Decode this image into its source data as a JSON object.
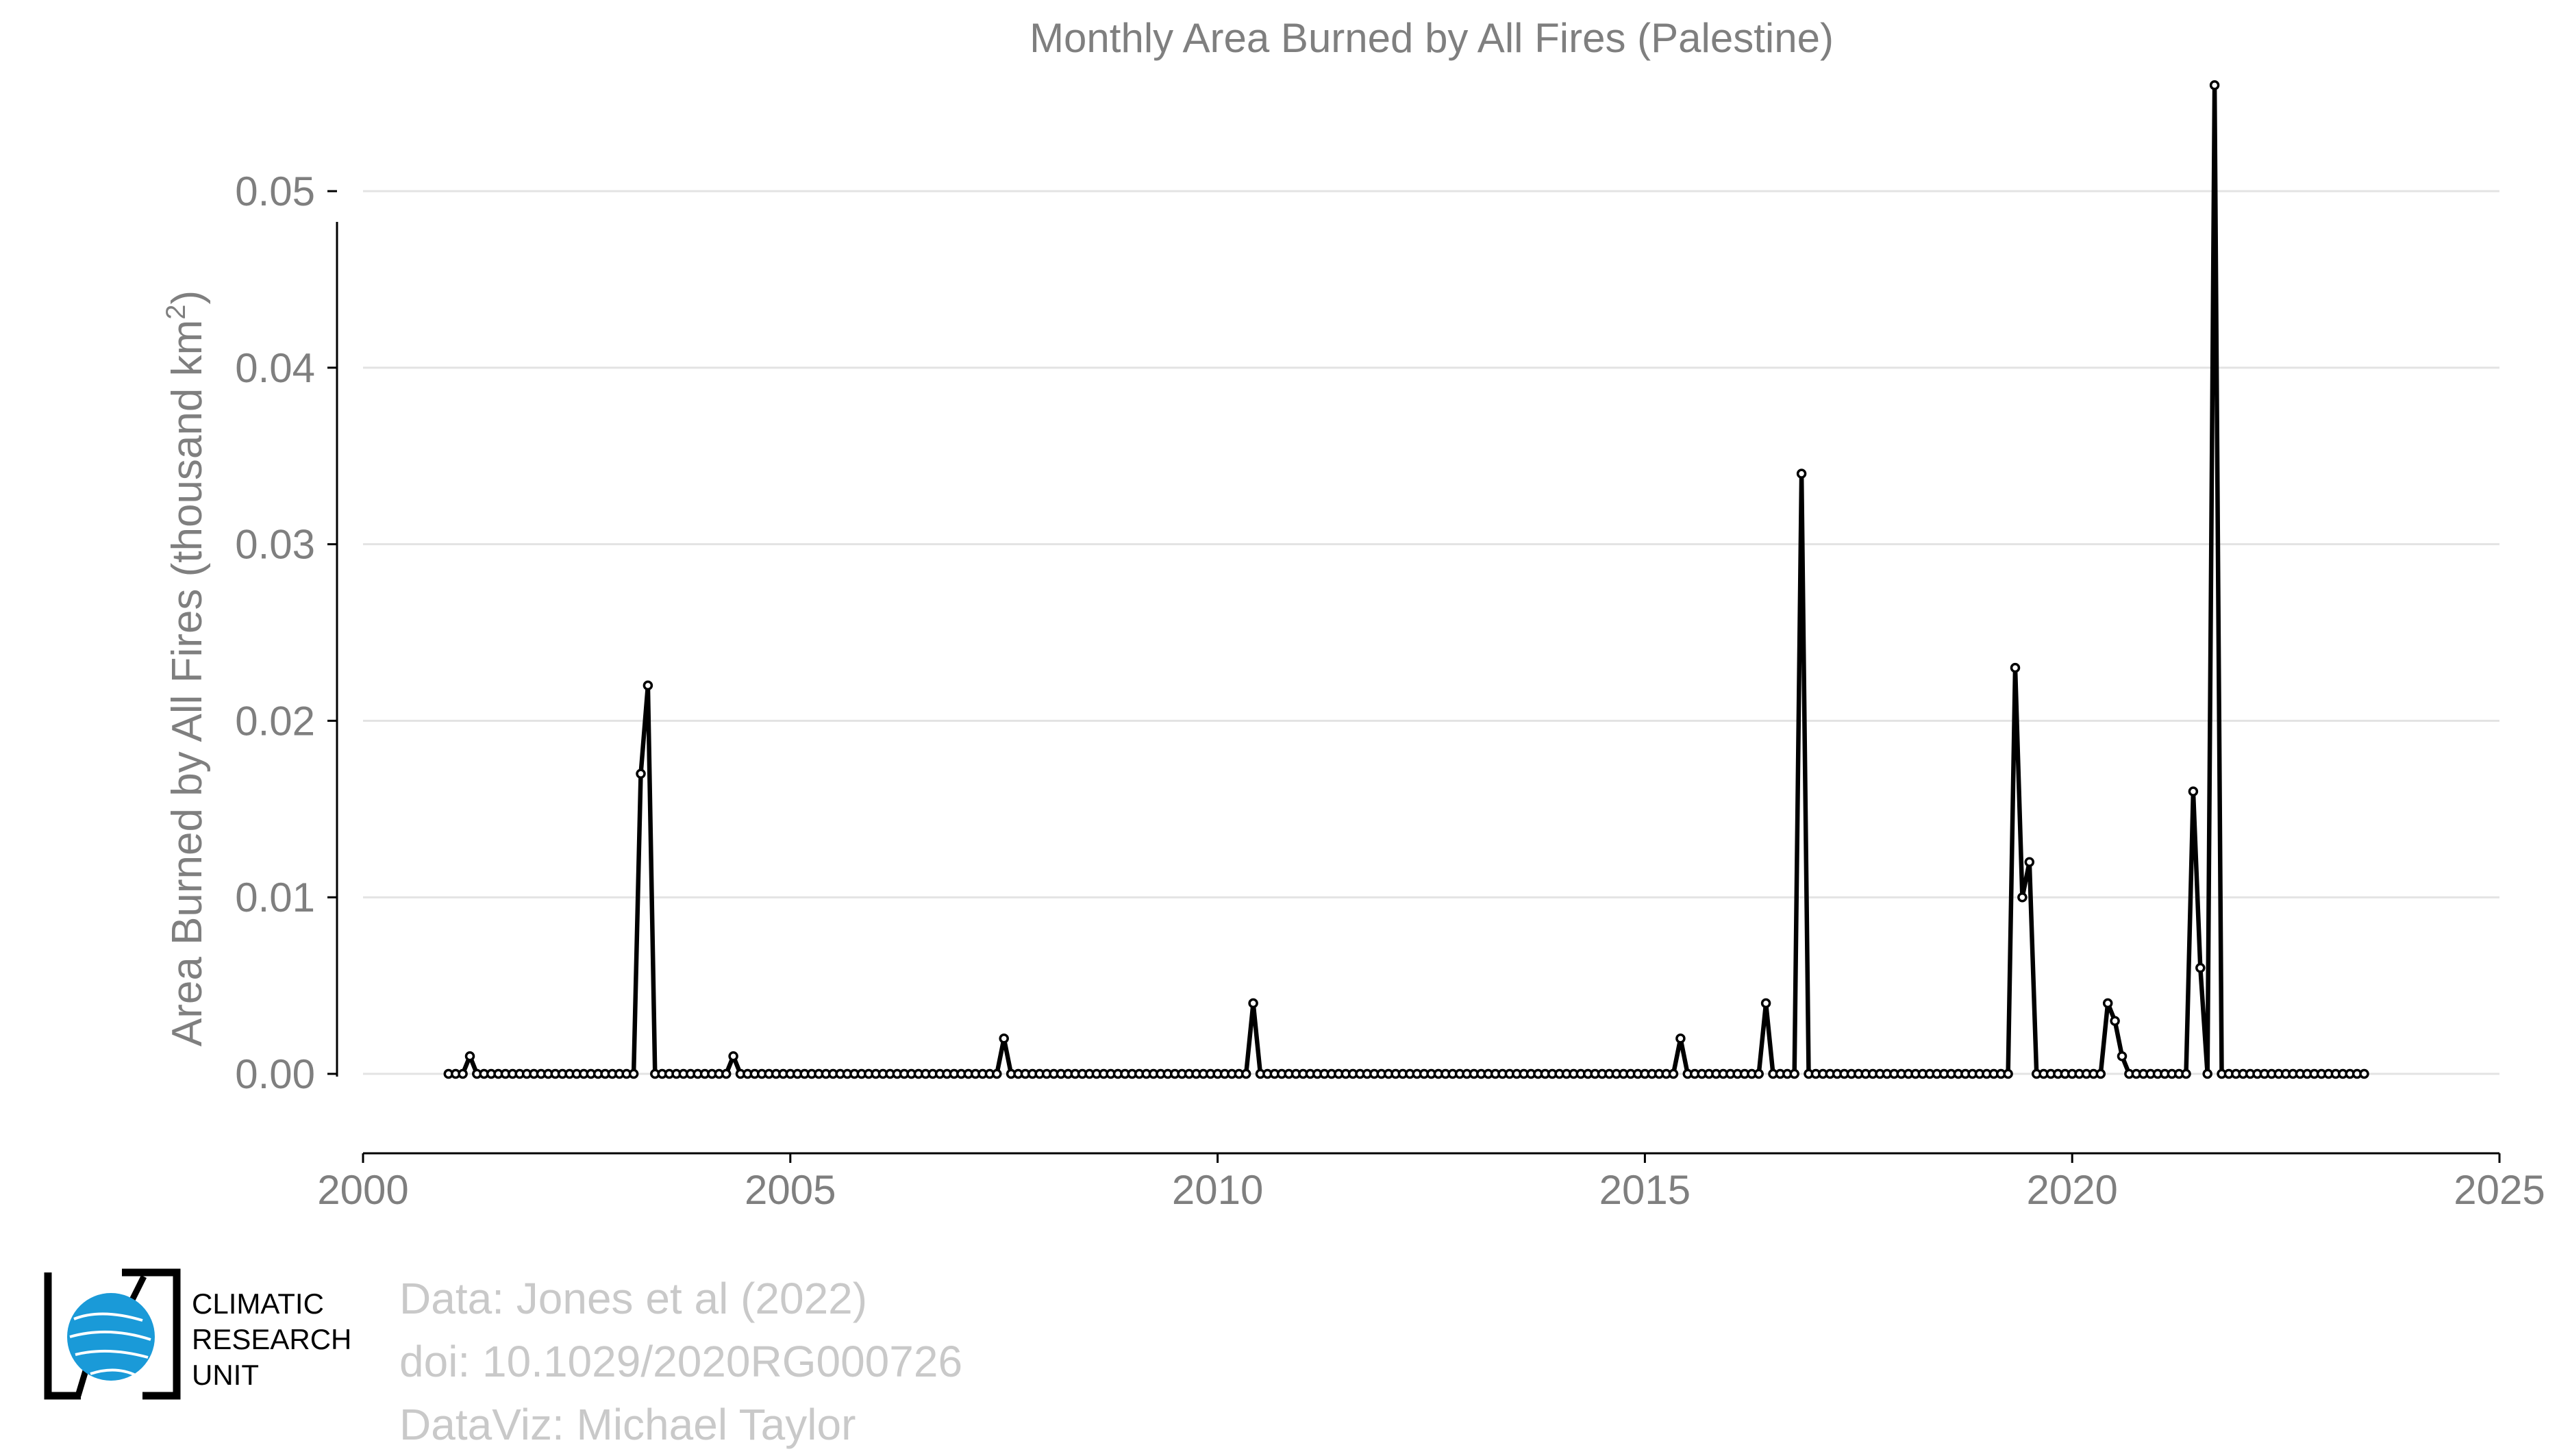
{
  "chart_data": {
    "type": "line",
    "title": "Monthly Area Burned by All Fires (Palestine)",
    "ylabel_main": "Area Burned by All Fires (thousand km",
    "ylabel_sup": "2",
    "ylabel_tail": ")",
    "xlim": [
      2000,
      2025
    ],
    "ylim": [
      -0.0045,
      0.0585
    ],
    "xticks": [
      2000,
      2005,
      2010,
      2015,
      2020,
      2025
    ],
    "xtick_labels": [
      "2000",
      "2005",
      "2010",
      "2015",
      "2020",
      "2025"
    ],
    "yticks": [
      0,
      0.01,
      0.02,
      0.03,
      0.04,
      0.05
    ],
    "ytick_labels": [
      "0.00",
      "0.01",
      "0.02",
      "0.03",
      "0.04",
      "0.05"
    ],
    "grid": true,
    "series": [
      {
        "start": "2001-01",
        "values": [
          0,
          0,
          0,
          0.001,
          0,
          0,
          0,
          0,
          0,
          0,
          0,
          0,
          0,
          0,
          0,
          0,
          0,
          0,
          0,
          0,
          0,
          0,
          0,
          0,
          0,
          0,
          0,
          0.017,
          0.022,
          0,
          0,
          0,
          0,
          0,
          0,
          0,
          0,
          0,
          0,
          0,
          0.001,
          0,
          0,
          0,
          0,
          0,
          0,
          0,
          0,
          0,
          0,
          0,
          0,
          0,
          0,
          0,
          0,
          0,
          0,
          0,
          0,
          0,
          0,
          0,
          0,
          0,
          0,
          0,
          0,
          0,
          0,
          0,
          0,
          0,
          0,
          0,
          0,
          0,
          0.002,
          0,
          0,
          0,
          0,
          0,
          0,
          0,
          0,
          0,
          0,
          0,
          0,
          0,
          0,
          0,
          0,
          0,
          0,
          0,
          0,
          0,
          0,
          0,
          0,
          0,
          0,
          0,
          0,
          0,
          0,
          0,
          0,
          0,
          0,
          0.004,
          0,
          0,
          0,
          0,
          0,
          0,
          0,
          0,
          0,
          0,
          0,
          0,
          0,
          0,
          0,
          0,
          0,
          0,
          0,
          0,
          0,
          0,
          0,
          0,
          0,
          0,
          0,
          0,
          0,
          0,
          0,
          0,
          0,
          0,
          0,
          0,
          0,
          0,
          0,
          0,
          0,
          0,
          0,
          0,
          0,
          0,
          0,
          0,
          0,
          0,
          0,
          0,
          0,
          0,
          0,
          0,
          0,
          0,
          0,
          0.002,
          0,
          0,
          0,
          0,
          0,
          0,
          0,
          0,
          0,
          0,
          0,
          0.004,
          0,
          0,
          0,
          0,
          0.034,
          0,
          0,
          0,
          0,
          0,
          0,
          0,
          0,
          0,
          0,
          0,
          0,
          0,
          0,
          0,
          0,
          0,
          0,
          0,
          0,
          0,
          0,
          0,
          0,
          0,
          0,
          0,
          0,
          0,
          0.023,
          0.01,
          0.012,
          0,
          0,
          0,
          0,
          0,
          0,
          0,
          0,
          0,
          0,
          0.004,
          0.003,
          0.001,
          0,
          0,
          0,
          0,
          0,
          0,
          0,
          0,
          0,
          0.016,
          0.006,
          0,
          0.056,
          0,
          0,
          0,
          0,
          0,
          0,
          0,
          0,
          0,
          0,
          0,
          0,
          0,
          0,
          0,
          0,
          0,
          0,
          0,
          0,
          0
        ]
      }
    ]
  },
  "credits": {
    "line1": "Data: Jones et al (2022)",
    "line2": "doi: 10.1029/2020RG000726",
    "line3": "DataViz: Michael Taylor"
  },
  "logo": {
    "line1": "CLIMATIC",
    "line2": "RESEARCH",
    "line3": "UNIT",
    "color": "#1a9ad8"
  }
}
